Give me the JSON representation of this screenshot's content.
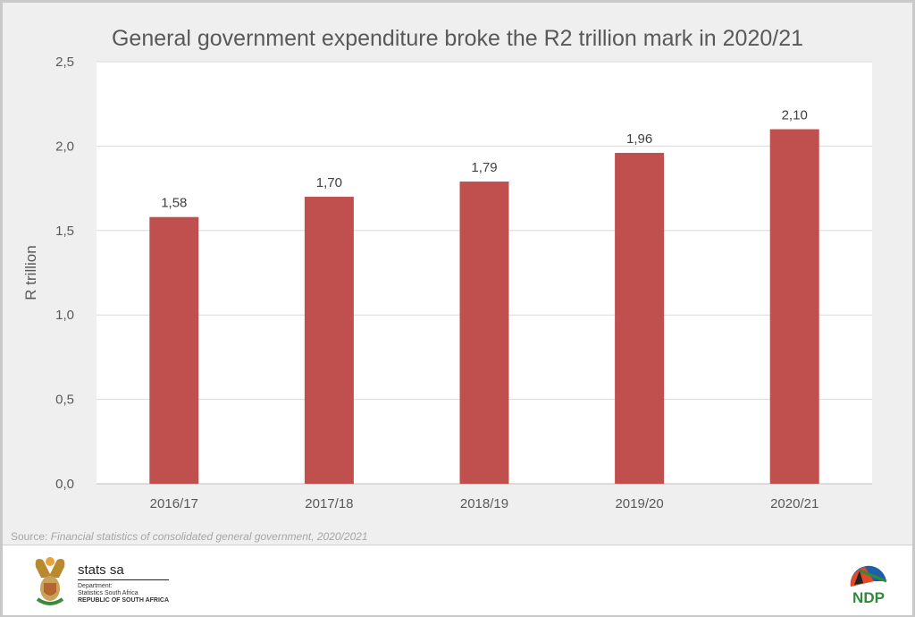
{
  "chart_data": {
    "type": "bar",
    "title": "General government expenditure broke the R2 trillion mark in 2020/21",
    "xlabel": "",
    "ylabel": "R trillion",
    "categories": [
      "2016/17",
      "2017/18",
      "2018/19",
      "2019/20",
      "2020/21"
    ],
    "values": [
      1.58,
      1.7,
      1.79,
      1.96,
      2.1
    ],
    "data_labels": [
      "1,58",
      "1,70",
      "1,79",
      "1,96",
      "2,10"
    ],
    "ylim": [
      0,
      2.5
    ],
    "yticks": [
      0,
      0.5,
      1.0,
      1.5,
      2.0,
      2.5
    ],
    "ytick_labels": [
      "0,0",
      "0,5",
      "1,0",
      "1,5",
      "2,0",
      "2,5"
    ],
    "grid": true,
    "bar_color": "#c0504d"
  },
  "source": {
    "prefix": "Source: ",
    "text": "Financial statistics of consolidated general government, 2020/2021"
  },
  "footer": {
    "logo_name": "stats sa",
    "dept1": "Department:",
    "dept2": "Statistics South Africa",
    "dept3": "REPUBLIC OF SOUTH AFRICA",
    "ndp_logo": "NDP 2030"
  }
}
